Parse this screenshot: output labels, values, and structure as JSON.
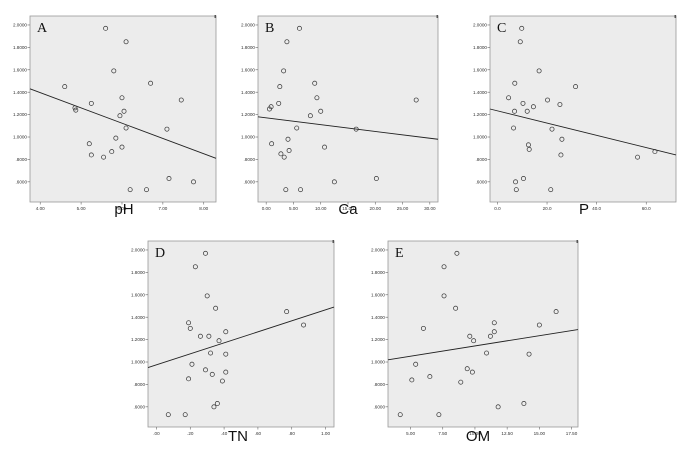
{
  "style": {
    "plot_background": "#ececec",
    "frame_color": "#999999",
    "point_color": "#333333",
    "line_color": "#222222"
  },
  "chart_data": [
    {
      "type": "scatter",
      "panel": "A",
      "xlabel": "pH",
      "ylabel": "",
      "xlim": [
        3.75,
        8.3
      ],
      "ylim": [
        0.42,
        2.08
      ],
      "grid": false,
      "xticks": [
        4.0,
        5.0,
        6.0,
        7.0,
        8.0
      ],
      "xtick_labels": [
        "4.00",
        "5.00",
        "6.00",
        "7.00",
        "8.00"
      ],
      "yticks": [
        0.6,
        0.8,
        1.0,
        1.2,
        1.4,
        1.6,
        1.8,
        2.0
      ],
      "ytick_labels": [
        ".6000",
        ".8000",
        "1.0000",
        "1.2000",
        "1.4000",
        "1.6000",
        "1.8000",
        "2.0000"
      ],
      "points": [
        {
          "x": 4.6,
          "y": 1.45
        },
        {
          "x": 4.85,
          "y": 1.26
        },
        {
          "x": 4.87,
          "y": 1.24
        },
        {
          "x": 5.25,
          "y": 1.3
        },
        {
          "x": 5.2,
          "y": 0.94
        },
        {
          "x": 5.25,
          "y": 0.84
        },
        {
          "x": 5.55,
          "y": 0.82
        },
        {
          "x": 5.6,
          "y": 1.97
        },
        {
          "x": 5.75,
          "y": 0.87
        },
        {
          "x": 5.8,
          "y": 1.59
        },
        {
          "x": 5.85,
          "y": 0.99
        },
        {
          "x": 5.95,
          "y": 1.19
        },
        {
          "x": 6.0,
          "y": 1.35
        },
        {
          "x": 6.05,
          "y": 1.23
        },
        {
          "x": 6.0,
          "y": 0.91
        },
        {
          "x": 6.1,
          "y": 1.08
        },
        {
          "x": 6.1,
          "y": 1.85
        },
        {
          "x": 6.2,
          "y": 0.53
        },
        {
          "x": 6.6,
          "y": 0.53
        },
        {
          "x": 6.7,
          "y": 1.48
        },
        {
          "x": 7.1,
          "y": 1.07
        },
        {
          "x": 7.15,
          "y": 0.63
        },
        {
          "x": 7.45,
          "y": 1.33
        },
        {
          "x": 7.75,
          "y": 0.6
        }
      ],
      "fit_line": {
        "x0": 3.75,
        "y0": 1.43,
        "x1": 8.3,
        "y1": 0.81
      }
    },
    {
      "type": "scatter",
      "panel": "B",
      "xlabel": "Ca",
      "ylabel": "",
      "xlim": [
        -1.5,
        31.5
      ],
      "ylim": [
        0.42,
        2.08
      ],
      "grid": false,
      "xticks": [
        0,
        5,
        10,
        15,
        20,
        25,
        30
      ],
      "xtick_labels": [
        "0.00",
        "5.00",
        "10.00",
        "15.00",
        "20.00",
        "25.00",
        "30.00"
      ],
      "yticks": [
        0.6,
        0.8,
        1.0,
        1.2,
        1.4,
        1.6,
        1.8,
        2.0
      ],
      "ytick_labels": [
        ".6000",
        ".8000",
        "1.0000",
        "1.2000",
        "1.4000",
        "1.6000",
        "1.8000",
        "2.0000"
      ],
      "points": [
        {
          "x": 0.6,
          "y": 1.25
        },
        {
          "x": 0.9,
          "y": 1.27
        },
        {
          "x": 1.0,
          "y": 0.94
        },
        {
          "x": 2.3,
          "y": 1.3
        },
        {
          "x": 2.5,
          "y": 1.45
        },
        {
          "x": 2.7,
          "y": 0.85
        },
        {
          "x": 3.2,
          "y": 1.59
        },
        {
          "x": 3.3,
          "y": 0.82
        },
        {
          "x": 3.6,
          "y": 0.53
        },
        {
          "x": 3.8,
          "y": 1.85
        },
        {
          "x": 4.0,
          "y": 0.98
        },
        {
          "x": 4.2,
          "y": 0.88
        },
        {
          "x": 5.6,
          "y": 1.08
        },
        {
          "x": 6.1,
          "y": 1.97
        },
        {
          "x": 6.3,
          "y": 0.53
        },
        {
          "x": 8.1,
          "y": 1.19
        },
        {
          "x": 8.9,
          "y": 1.48
        },
        {
          "x": 9.3,
          "y": 1.35
        },
        {
          "x": 10.0,
          "y": 1.23
        },
        {
          "x": 10.7,
          "y": 0.91
        },
        {
          "x": 12.5,
          "y": 0.6
        },
        {
          "x": 16.5,
          "y": 1.07
        },
        {
          "x": 20.2,
          "y": 0.63
        },
        {
          "x": 27.5,
          "y": 1.33
        }
      ],
      "fit_line": {
        "x0": -1.5,
        "y0": 1.18,
        "x1": 31.5,
        "y1": 0.98
      }
    },
    {
      "type": "scatter",
      "panel": "C",
      "xlabel": "P",
      "ylabel": "",
      "xlim": [
        -3,
        72
      ],
      "ylim": [
        0.42,
        2.08
      ],
      "grid": false,
      "xticks": [
        0,
        20,
        40,
        60
      ],
      "xtick_labels": [
        "0.0",
        "20.0",
        "40.0",
        "60.0"
      ],
      "yticks": [
        0.6,
        0.8,
        1.0,
        1.2,
        1.4,
        1.6,
        1.8,
        2.0
      ],
      "ytick_labels": [
        ".6000",
        ".8000",
        "1.0000",
        "1.2000",
        "1.4000",
        "1.6000",
        "1.8000",
        "2.0000"
      ],
      "points": [
        {
          "x": 4.5,
          "y": 1.35
        },
        {
          "x": 6.5,
          "y": 1.08
        },
        {
          "x": 6.9,
          "y": 1.23
        },
        {
          "x": 7.0,
          "y": 1.48
        },
        {
          "x": 7.3,
          "y": 0.6
        },
        {
          "x": 7.6,
          "y": 0.53
        },
        {
          "x": 9.2,
          "y": 1.85
        },
        {
          "x": 9.8,
          "y": 1.97
        },
        {
          "x": 10.3,
          "y": 1.3
        },
        {
          "x": 10.5,
          "y": 0.63
        },
        {
          "x": 12.0,
          "y": 1.23
        },
        {
          "x": 12.5,
          "y": 0.93
        },
        {
          "x": 12.8,
          "y": 0.89
        },
        {
          "x": 14.5,
          "y": 1.27
        },
        {
          "x": 16.8,
          "y": 1.59
        },
        {
          "x": 20.2,
          "y": 1.33
        },
        {
          "x": 21.5,
          "y": 0.53
        },
        {
          "x": 22.0,
          "y": 1.07
        },
        {
          "x": 25.2,
          "y": 1.29
        },
        {
          "x": 25.6,
          "y": 0.84
        },
        {
          "x": 26.0,
          "y": 0.98
        },
        {
          "x": 31.5,
          "y": 1.45
        },
        {
          "x": 56.5,
          "y": 0.82
        },
        {
          "x": 63.5,
          "y": 0.87
        }
      ],
      "fit_line": {
        "x0": -3,
        "y0": 1.25,
        "x1": 72,
        "y1": 0.84
      }
    },
    {
      "type": "scatter",
      "panel": "D",
      "xlabel": "TN",
      "ylabel": "",
      "xlim": [
        -0.05,
        1.05
      ],
      "ylim": [
        0.42,
        2.08
      ],
      "grid": false,
      "xticks": [
        0.0,
        0.2,
        0.4,
        0.6,
        0.8,
        1.0
      ],
      "xtick_labels": [
        ".00",
        ".20",
        ".40",
        ".60",
        ".80",
        "1.00"
      ],
      "yticks": [
        0.6,
        0.8,
        1.0,
        1.2,
        1.4,
        1.6,
        1.8,
        2.0
      ],
      "ytick_labels": [
        ".6000",
        ".8000",
        "1.0000",
        "1.2000",
        "1.4000",
        "1.6000",
        "1.8000",
        "2.0000"
      ],
      "points": [
        {
          "x": 0.07,
          "y": 0.53
        },
        {
          "x": 0.17,
          "y": 0.53
        },
        {
          "x": 0.19,
          "y": 1.35
        },
        {
          "x": 0.2,
          "y": 1.3
        },
        {
          "x": 0.21,
          "y": 0.98
        },
        {
          "x": 0.19,
          "y": 0.85
        },
        {
          "x": 0.23,
          "y": 1.85
        },
        {
          "x": 0.26,
          "y": 1.23
        },
        {
          "x": 0.29,
          "y": 1.97
        },
        {
          "x": 0.3,
          "y": 1.59
        },
        {
          "x": 0.29,
          "y": 0.93
        },
        {
          "x": 0.31,
          "y": 1.23
        },
        {
          "x": 0.32,
          "y": 1.08
        },
        {
          "x": 0.33,
          "y": 0.89
        },
        {
          "x": 0.35,
          "y": 1.48
        },
        {
          "x": 0.34,
          "y": 0.6
        },
        {
          "x": 0.36,
          "y": 0.63
        },
        {
          "x": 0.37,
          "y": 1.19
        },
        {
          "x": 0.39,
          "y": 0.83
        },
        {
          "x": 0.41,
          "y": 1.27
        },
        {
          "x": 0.41,
          "y": 1.07
        },
        {
          "x": 0.41,
          "y": 0.91
        },
        {
          "x": 0.77,
          "y": 1.45
        },
        {
          "x": 0.87,
          "y": 1.33
        }
      ],
      "fit_line": {
        "x0": -0.05,
        "y0": 0.95,
        "x1": 1.05,
        "y1": 1.49
      }
    },
    {
      "type": "scatter",
      "panel": "E",
      "xlabel": "OM",
      "ylabel": "",
      "xlim": [
        3.25,
        18.0
      ],
      "ylim": [
        0.42,
        2.08
      ],
      "grid": false,
      "xticks": [
        5.0,
        7.5,
        10.0,
        12.5,
        15.0,
        17.5
      ],
      "xtick_labels": [
        "5.00",
        "7.50",
        "10.00",
        "12.50",
        "15.00",
        "17.50"
      ],
      "yticks": [
        0.6,
        0.8,
        1.0,
        1.2,
        1.4,
        1.6,
        1.8,
        2.0
      ],
      "ytick_labels": [
        ".6000",
        ".8000",
        "1.0000",
        "1.2000",
        "1.4000",
        "1.6000",
        "1.8000",
        "2.0000"
      ],
      "points": [
        {
          "x": 4.2,
          "y": 0.53
        },
        {
          "x": 5.1,
          "y": 0.84
        },
        {
          "x": 5.4,
          "y": 0.98
        },
        {
          "x": 6.0,
          "y": 1.3
        },
        {
          "x": 6.5,
          "y": 0.87
        },
        {
          "x": 7.2,
          "y": 0.53
        },
        {
          "x": 7.6,
          "y": 1.85
        },
        {
          "x": 7.6,
          "y": 1.59
        },
        {
          "x": 8.5,
          "y": 1.48
        },
        {
          "x": 8.6,
          "y": 1.97
        },
        {
          "x": 8.9,
          "y": 0.82
        },
        {
          "x": 9.4,
          "y": 0.94
        },
        {
          "x": 9.6,
          "y": 1.23
        },
        {
          "x": 9.8,
          "y": 0.91
        },
        {
          "x": 9.9,
          "y": 1.19
        },
        {
          "x": 10.9,
          "y": 1.08
        },
        {
          "x": 11.2,
          "y": 1.23
        },
        {
          "x": 11.5,
          "y": 1.27
        },
        {
          "x": 11.5,
          "y": 1.35
        },
        {
          "x": 11.8,
          "y": 0.6
        },
        {
          "x": 13.8,
          "y": 0.63
        },
        {
          "x": 14.2,
          "y": 1.07
        },
        {
          "x": 15.0,
          "y": 1.33
        },
        {
          "x": 16.3,
          "y": 1.45
        }
      ],
      "fit_line": {
        "x0": 3.25,
        "y0": 1.02,
        "x1": 18.0,
        "y1": 1.29
      }
    }
  ]
}
